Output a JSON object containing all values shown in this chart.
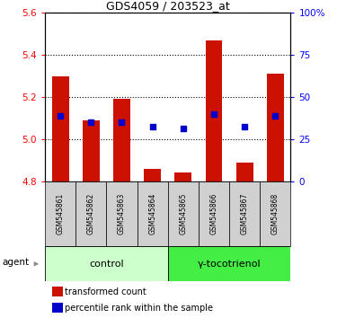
{
  "title": "GDS4059 / 203523_at",
  "samples": [
    "GSM545861",
    "GSM545862",
    "GSM545863",
    "GSM545864",
    "GSM545865",
    "GSM545866",
    "GSM545867",
    "GSM545868"
  ],
  "red_values": [
    5.3,
    5.09,
    5.19,
    4.86,
    4.84,
    5.47,
    4.89,
    5.31
  ],
  "blue_values": [
    5.11,
    5.08,
    5.08,
    5.06,
    5.05,
    5.12,
    5.06,
    5.11
  ],
  "ylim_left": [
    4.8,
    5.6
  ],
  "ylim_right": [
    0,
    100
  ],
  "yticks_left": [
    4.8,
    5.0,
    5.2,
    5.4,
    5.6
  ],
  "yticks_right": [
    0,
    25,
    50,
    75,
    100
  ],
  "ytick_labels_right": [
    "0",
    "25",
    "50",
    "75",
    "100%"
  ],
  "bar_color": "#cc1100",
  "dot_color": "#0000cc",
  "bar_bottom": 4.8,
  "bar_width": 0.55,
  "plot_bg": "#ffffff",
  "agent_label": "agent",
  "legend_items": [
    "transformed count",
    "percentile rank within the sample"
  ],
  "ctrl_color": "#ccffcc",
  "gam_color": "#44ee44",
  "sample_box_color": "#d0d0d0"
}
